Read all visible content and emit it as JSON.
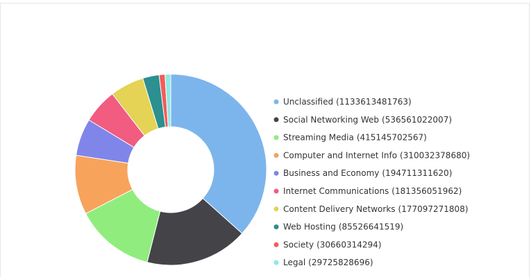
{
  "chart_data": {
    "type": "pie",
    "categories": [
      "Unclassified",
      "Social Networking Web",
      "Streaming Media",
      "Computer and Internet Info",
      "Business and Economy",
      "Internet Communications",
      "Content Delivery Networks",
      "Web Hosting",
      "Society",
      "Legal"
    ],
    "values": [
      1133613481763,
      536561022007,
      415145702567,
      310032378680,
      194711311620,
      181356051962,
      177097271808,
      85526641519,
      30660314294,
      29725828696
    ],
    "value_labels": [
      "(1133613481763)",
      "(536561022007)",
      "(415145702567)",
      "(310032378680)",
      "(194711311620)",
      "(181356051962)",
      "(177097271808)",
      "(85526641519)",
      "(30660314294)",
      "(29725828696)"
    ],
    "colors": [
      "#7cb5ec",
      "#434348",
      "#90ed7d",
      "#f7a35c",
      "#8085e9",
      "#f15c80",
      "#e4d354",
      "#2b908f",
      "#f45b5b",
      "#91e8e1"
    ],
    "donut": true,
    "legend": "right"
  }
}
